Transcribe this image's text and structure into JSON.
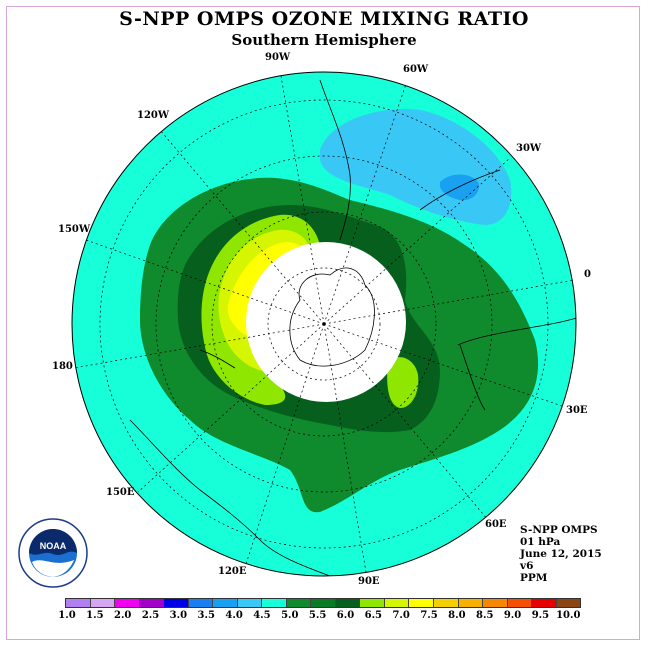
{
  "title": "S-NPP OMPS OZONE MIXING RATIO",
  "subtitle": "Southern Hemisphere",
  "longitude_labels": [
    {
      "id": "90w",
      "text": "90W"
    },
    {
      "id": "60w",
      "text": "60W"
    },
    {
      "id": "30w",
      "text": "30W"
    },
    {
      "id": "120w",
      "text": "120W"
    },
    {
      "id": "150w",
      "text": "150W"
    },
    {
      "id": "0",
      "text": "0"
    },
    {
      "id": "180",
      "text": "180"
    },
    {
      "id": "30e",
      "text": "30E"
    },
    {
      "id": "150e",
      "text": "150E"
    },
    {
      "id": "60e",
      "text": "60E"
    },
    {
      "id": "120e",
      "text": "120E"
    },
    {
      "id": "90e",
      "text": "90E"
    }
  ],
  "info": {
    "instrument": "S-NPP OMPS",
    "pressure": "01 hPa",
    "date": "June 12, 2015",
    "version": "v6",
    "units": "PPM"
  },
  "logo": {
    "text": "NOAA",
    "icon": "noaa-logo-icon"
  },
  "colorbar": {
    "colors": [
      "#b27ff0",
      "#d6a6f0",
      "#f000f0",
      "#a000c8",
      "#0000e6",
      "#1a7ff0",
      "#1aa0f0",
      "#39c8f5",
      "#17ffd9",
      "#0f8a2c",
      "#0a7a26",
      "#075f1e",
      "#8fe600",
      "#d6f500",
      "#ffff00",
      "#f5d000",
      "#f5b000",
      "#f58800",
      "#f55000",
      "#e60000",
      "#8b4513"
    ],
    "tick_labels": [
      "1.0",
      "1.5",
      "2.0",
      "2.5",
      "3.0",
      "3.5",
      "4.0",
      "4.5",
      "5.0",
      "5.5",
      "6.0",
      "6.5",
      "7.0",
      "7.5",
      "8.0",
      "8.5",
      "9.0",
      "9.5",
      "10.0"
    ]
  },
  "map_colors": {
    "ocean_bg": "#17ffd9",
    "light_blue": "#39c8f5",
    "mid_blue": "#1aa0f0",
    "green": "#0f8a2c",
    "dark_green": "#075f1e",
    "yellow_green": "#8fe600",
    "lime": "#d6f500",
    "yellow": "#ffff00",
    "no_data": "#ffffff"
  }
}
